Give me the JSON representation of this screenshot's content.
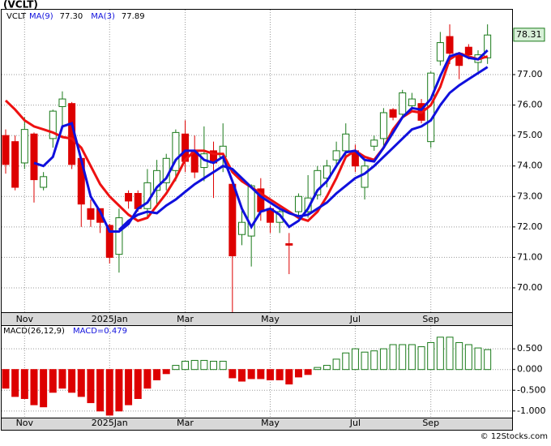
{
  "chart_data": [
    {
      "type": "candlestick",
      "title": "(VCLT)",
      "ticker": "VCLT",
      "legend": [
        {
          "name": "MA(9)",
          "last": "77.30",
          "color": "#1010dd"
        },
        {
          "name": "MA(3)",
          "last": "77.89",
          "color": "#1010dd"
        }
      ],
      "categories": [
        null,
        null,
        "Nov",
        null,
        null,
        null,
        null,
        null,
        null,
        null,
        null,
        "2025Jan",
        null,
        null,
        null,
        null,
        null,
        null,
        null,
        "Mar",
        null,
        null,
        null,
        null,
        null,
        null,
        null,
        null,
        "May",
        null,
        null,
        null,
        null,
        null,
        null,
        null,
        null,
        "Jul",
        null,
        null,
        null,
        null,
        null,
        null,
        null,
        "Sep",
        null,
        null,
        null,
        null,
        null,
        null
      ],
      "open": [
        75.0,
        74.8,
        74.1,
        75.05,
        73.3,
        74.9,
        75.95,
        76.05,
        74.25,
        72.6,
        72.6,
        72.05,
        71.1,
        73.1,
        73.1,
        72.6,
        73.2,
        73.45,
        73.85,
        75.05,
        74.5,
        73.95,
        74.5,
        74.3,
        73.4,
        71.75,
        71.7,
        73.25,
        72.6,
        72.15,
        71.45,
        72.5,
        72.5,
        73.05,
        73.6,
        74.2,
        74.5,
        74.5,
        73.3,
        74.65,
        74.9,
        75.85,
        75.7,
        75.98,
        76.05,
        74.8,
        77.45,
        78.25,
        77.7,
        77.9,
        77.4,
        77.55
      ],
      "high": [
        75.2,
        75.0,
        75.6,
        75.1,
        73.8,
        75.85,
        76.45,
        76.1,
        74.3,
        72.9,
        72.6,
        72.1,
        72.6,
        73.2,
        73.2,
        73.9,
        74.2,
        74.4,
        75.2,
        75.5,
        75.0,
        75.3,
        74.8,
        75.4,
        73.5,
        72.6,
        73.4,
        73.6,
        72.7,
        72.7,
        71.8,
        73.1,
        73.7,
        74.0,
        74.2,
        74.8,
        75.4,
        74.7,
        74.2,
        75.0,
        75.9,
        75.9,
        76.5,
        76.4,
        76.2,
        77.1,
        78.4,
        78.65,
        77.7,
        78.0,
        77.8,
        78.65
      ],
      "low": [
        73.75,
        73.2,
        73.9,
        72.8,
        73.2,
        74.6,
        75.2,
        73.9,
        72.0,
        72.0,
        71.8,
        70.8,
        70.5,
        72.6,
        72.5,
        72.3,
        72.7,
        73.2,
        73.5,
        73.8,
        73.6,
        73.5,
        72.95,
        73.8,
        69.2,
        71.4,
        70.7,
        72.2,
        71.8,
        71.8,
        70.45,
        72.3,
        72.3,
        72.9,
        73.3,
        74.0,
        74.3,
        73.8,
        72.9,
        74.5,
        74.6,
        75.5,
        75.6,
        75.8,
        75.4,
        74.6,
        77.3,
        77.35,
        76.85,
        77.5,
        77.1,
        77.35
      ],
      "close": [
        74.05,
        73.3,
        75.2,
        73.55,
        73.65,
        75.8,
        76.2,
        74.05,
        72.75,
        72.25,
        72.15,
        71.0,
        72.3,
        72.85,
        72.6,
        73.45,
        73.85,
        74.25,
        75.1,
        74.15,
        73.8,
        74.4,
        74.1,
        74.65,
        71.05,
        72.15,
        73.35,
        72.5,
        72.15,
        72.5,
        71.4,
        73.0,
        72.95,
        73.85,
        74.0,
        74.5,
        75.05,
        74.0,
        74.0,
        74.85,
        75.75,
        75.6,
        76.4,
        76.2,
        75.5,
        77.05,
        78.05,
        77.7,
        77.3,
        77.65,
        77.65,
        78.3
      ],
      "up_color": "#1a7a1a",
      "down_color": "#dd0000",
      "series": [
        {
          "color": "#ee1111",
          "values": [
            76.15,
            75.85,
            75.5,
            75.3,
            75.2,
            75.1,
            74.95,
            74.9,
            74.6,
            74.0,
            73.4,
            73.0,
            72.7,
            72.4,
            72.2,
            72.3,
            72.7,
            73.1,
            73.6,
            74.2,
            74.5,
            74.5,
            74.4,
            74.4,
            73.8,
            73.5,
            73.3,
            73.1,
            72.9,
            72.7,
            72.5,
            72.3,
            72.2,
            72.5,
            73.0,
            73.6,
            74.3,
            74.5,
            74.3,
            74.2,
            74.6,
            75.2,
            75.6,
            75.8,
            75.75,
            76.0,
            76.6,
            77.5,
            77.7,
            77.6,
            77.5,
            77.6
          ]
        },
        {
          "color": "#1010dd",
          "values": [
            null,
            null,
            null,
            74.1,
            74.0,
            74.3,
            75.3,
            75.4,
            74.2,
            73.0,
            72.5,
            71.85,
            71.85,
            72.1,
            72.6,
            72.8,
            73.3,
            73.6,
            74.2,
            74.5,
            74.5,
            74.2,
            74.1,
            74.3,
            73.5,
            72.6,
            72.0,
            72.5,
            72.6,
            72.4,
            72.0,
            72.2,
            72.6,
            73.2,
            73.5,
            74.0,
            74.45,
            74.5,
            74.2,
            74.15,
            74.6,
            75.1,
            75.6,
            75.9,
            75.85,
            76.2,
            76.95,
            77.6,
            77.7,
            77.55,
            77.5,
            77.8
          ]
        },
        {
          "color": "#1010dd",
          "values": [
            null,
            null,
            null,
            null,
            null,
            null,
            null,
            null,
            null,
            null,
            null,
            null,
            71.9,
            72.2,
            72.4,
            72.5,
            72.45,
            72.7,
            72.9,
            73.15,
            73.4,
            73.6,
            73.8,
            74.0,
            73.9,
            73.6,
            73.3,
            73.0,
            72.8,
            72.6,
            72.45,
            72.35,
            72.4,
            72.6,
            72.8,
            73.1,
            73.35,
            73.6,
            73.75,
            74.0,
            74.3,
            74.6,
            74.9,
            75.2,
            75.3,
            75.5,
            76.0,
            76.4,
            76.65,
            76.85,
            77.05,
            77.25
          ]
        }
      ],
      "last_price": 78.31,
      "ylim": [
        69.2,
        79.13
      ],
      "yticks": [
        {
          "value": 70,
          "label": "70.00"
        },
        {
          "value": 71,
          "label": "71.00"
        },
        {
          "value": 72,
          "label": "72.00"
        },
        {
          "value": 73,
          "label": "73.00"
        },
        {
          "value": 74,
          "label": "74.00"
        },
        {
          "value": 75,
          "label": "75.00"
        },
        {
          "value": 76,
          "label": "76.00"
        },
        {
          "value": 77,
          "label": "77.00"
        }
      ],
      "grid": true
    },
    {
      "type": "bar",
      "title": "MACD(26,12,9)",
      "annotation": "MACD=0.479",
      "values": [
        -0.45,
        -0.65,
        -0.7,
        -0.85,
        -0.9,
        -0.55,
        -0.45,
        -0.55,
        -0.65,
        -0.8,
        -1.0,
        -1.1,
        -1.0,
        -0.85,
        -0.7,
        -0.45,
        -0.25,
        -0.1,
        0.1,
        0.2,
        0.22,
        0.22,
        0.2,
        0.2,
        -0.2,
        -0.28,
        -0.22,
        -0.22,
        -0.25,
        -0.25,
        -0.35,
        -0.18,
        -0.12,
        0.05,
        0.1,
        0.25,
        0.4,
        0.5,
        0.42,
        0.45,
        0.5,
        0.6,
        0.6,
        0.6,
        0.55,
        0.65,
        0.78,
        0.78,
        0.65,
        0.6,
        0.52,
        0.48
      ],
      "up_color": "#1a7a1a",
      "down_color": "#dd0000",
      "ylim": [
        -1.16,
        1.05
      ],
      "yticks": [
        {
          "value": -1,
          "label": "-1.000"
        },
        {
          "value": -0.5,
          "label": "-0.500"
        },
        {
          "value": 0,
          "label": "0.000"
        },
        {
          "value": 0.5,
          "label": "0.500"
        }
      ],
      "grid": true,
      "footer": "© 12Stocks.com"
    }
  ]
}
